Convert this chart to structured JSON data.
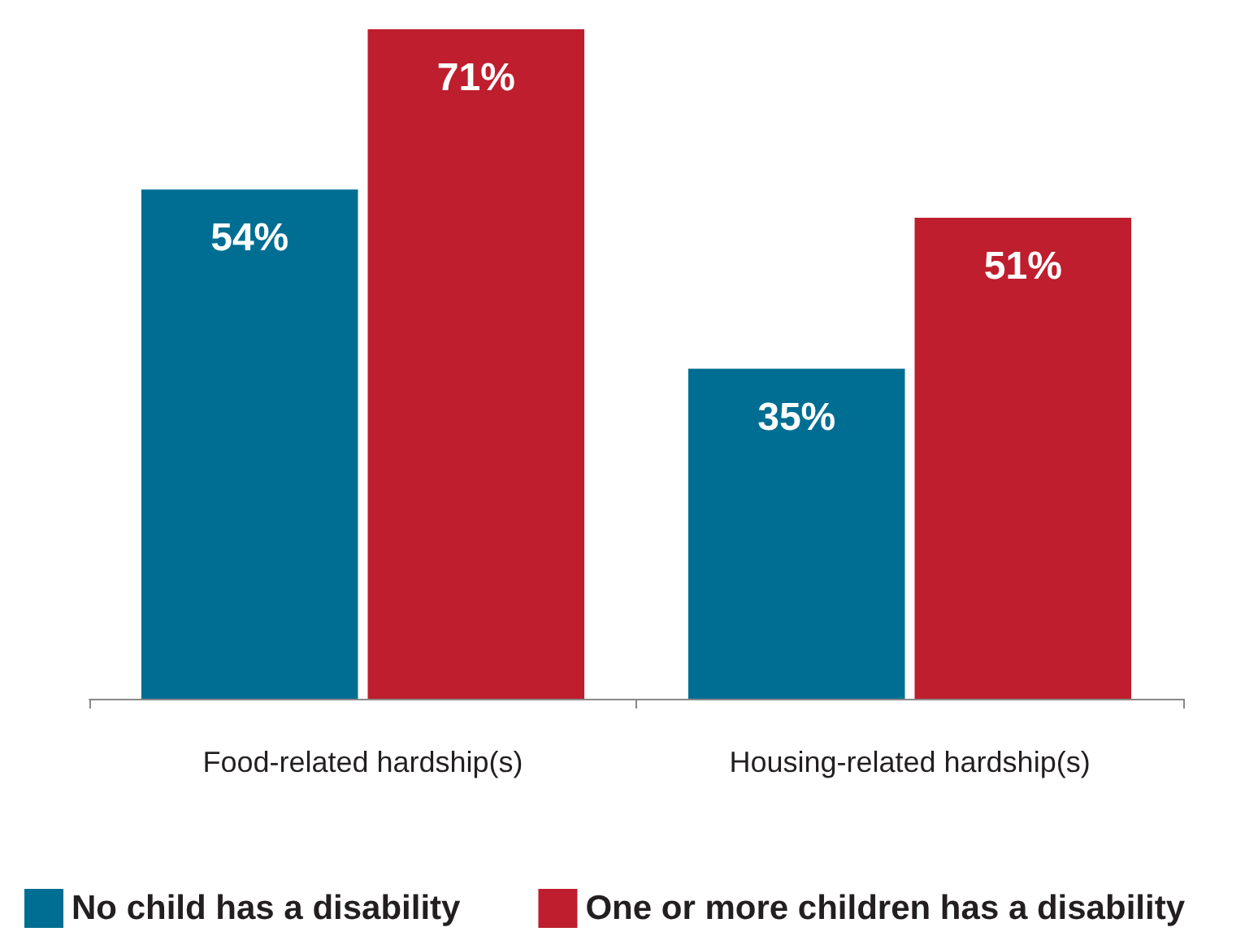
{
  "chart_data": {
    "type": "bar",
    "categories": [
      "Food-related hardship(s)",
      "Housing-related hardship(s)"
    ],
    "series": [
      {
        "name": "No child has a disability",
        "color": "#006e92",
        "values": [
          54,
          35
        ],
        "value_labels": [
          "54%",
          "35%"
        ]
      },
      {
        "name": "One or more children has a disability",
        "color": "#be1e2d",
        "values": [
          71,
          51
        ],
        "value_labels": [
          "71%",
          "51%"
        ]
      }
    ],
    "legend": "bottom"
  }
}
